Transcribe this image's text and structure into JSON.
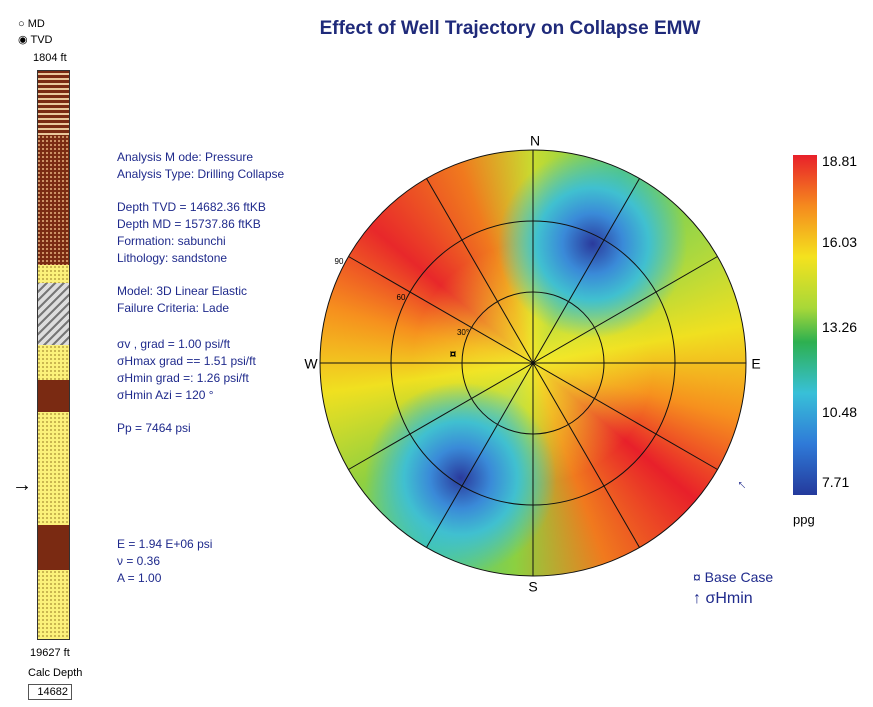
{
  "depth_panel": {
    "options": [
      "MD",
      "TVD"
    ],
    "top_depth": "1804 ft",
    "bottom_depth": "19627 ft",
    "calc_label": "Calc Depth",
    "calc_value": "14682"
  },
  "title": "Effect of Well Trajectory on Collapse EMW",
  "info": [
    "Analysis M ode: Pressure",
    "Analysis Type: Drilling Collapse",
    "Depth TVD = 14682.36 ftKB",
    "Depth MD = 15737.86 ftKB",
    "Formation: sabunchi",
    "Lithology: sandstone",
    "Model: 3D Linear Elastic",
    "Failure Criteria: Lade",
    "σv , grad = 1.00 psi/ft",
    "σHmax grad == 1.51 psi/ft",
    "σHmin grad =: 1.26 psi/ft",
    "σHmin Azi =  120 °",
    "Pp = 7464 psi",
    "E = 1.94 E+06 psi",
    "ν = 0.36",
    "A = 1.00"
  ],
  "polar": {
    "north": "N",
    "south": "S",
    "west": "W",
    "east": "E",
    "rings": [
      "90",
      "60",
      "30°"
    ]
  },
  "colorbar": {
    "ticks": [
      "18.81",
      "16.03",
      "13.26",
      "10.48",
      "7.71"
    ],
    "unit": "ppg"
  },
  "legend": {
    "base_case": "¤ Base Case",
    "shmin": "↑ σHmin"
  }
}
